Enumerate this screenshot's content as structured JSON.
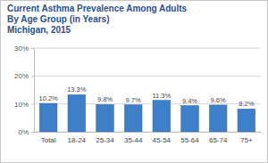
{
  "chart_data": {
    "type": "bar",
    "title": [
      "Current Asthma Prevalence Among Adults",
      "By Age Group (in Years)",
      "Michigan, 2015"
    ],
    "categories": [
      "Total",
      "18-24",
      "25-34",
      "35-44",
      "45-54",
      "55-64",
      "65-74",
      "75+"
    ],
    "values": [
      10.2,
      13.3,
      9.8,
      9.7,
      11.3,
      9.4,
      9.6,
      8.2
    ],
    "value_labels": [
      "10.2%",
      "13.3%",
      "9.8%",
      "9.7%",
      "11.3%",
      "9.4%",
      "9.6%",
      "8.2%"
    ],
    "color": "#3d7fc8",
    "ylim": [
      0,
      30
    ],
    "yticks": [
      {
        "value": 0,
        "label": "0%"
      },
      {
        "value": 10,
        "label": "10%"
      },
      {
        "value": 20,
        "label": "20%"
      },
      {
        "value": 30,
        "label": "30%"
      }
    ],
    "grid": true,
    "data_labels": true
  }
}
